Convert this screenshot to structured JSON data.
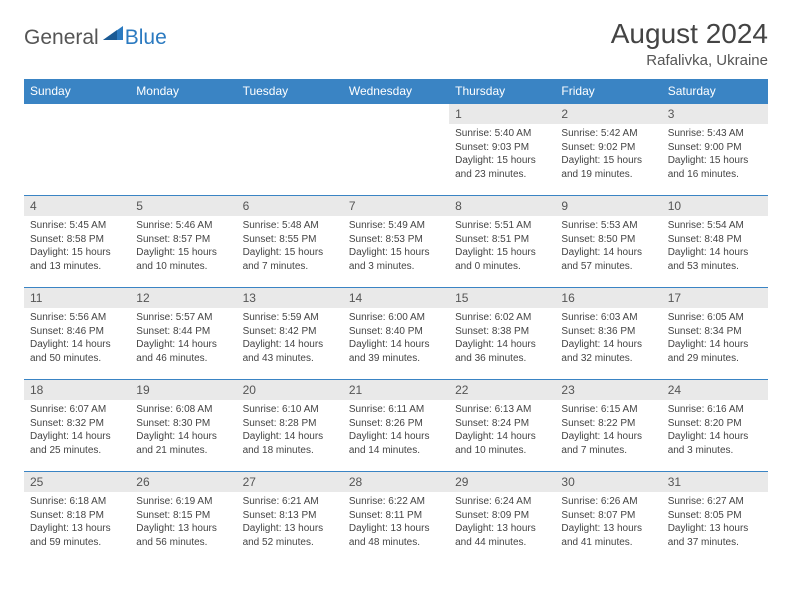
{
  "logo": {
    "part1": "General",
    "part2": "Blue"
  },
  "title": "August 2024",
  "location": "Rafalivka, Ukraine",
  "colors": {
    "header_bg": "#3a84c4",
    "header_text": "#ffffff",
    "daynum_bg": "#e9e9e9",
    "border": "#3a84c4",
    "body_text": "#444444",
    "logo_gray": "#555555",
    "logo_blue": "#2b7ac0"
  },
  "weekdays": [
    "Sunday",
    "Monday",
    "Tuesday",
    "Wednesday",
    "Thursday",
    "Friday",
    "Saturday"
  ],
  "weeks": [
    [
      {
        "n": "",
        "l1": "",
        "l2": "",
        "l3": "",
        "l4": ""
      },
      {
        "n": "",
        "l1": "",
        "l2": "",
        "l3": "",
        "l4": ""
      },
      {
        "n": "",
        "l1": "",
        "l2": "",
        "l3": "",
        "l4": ""
      },
      {
        "n": "",
        "l1": "",
        "l2": "",
        "l3": "",
        "l4": ""
      },
      {
        "n": "1",
        "l1": "Sunrise: 5:40 AM",
        "l2": "Sunset: 9:03 PM",
        "l3": "Daylight: 15 hours",
        "l4": "and 23 minutes."
      },
      {
        "n": "2",
        "l1": "Sunrise: 5:42 AM",
        "l2": "Sunset: 9:02 PM",
        "l3": "Daylight: 15 hours",
        "l4": "and 19 minutes."
      },
      {
        "n": "3",
        "l1": "Sunrise: 5:43 AM",
        "l2": "Sunset: 9:00 PM",
        "l3": "Daylight: 15 hours",
        "l4": "and 16 minutes."
      }
    ],
    [
      {
        "n": "4",
        "l1": "Sunrise: 5:45 AM",
        "l2": "Sunset: 8:58 PM",
        "l3": "Daylight: 15 hours",
        "l4": "and 13 minutes."
      },
      {
        "n": "5",
        "l1": "Sunrise: 5:46 AM",
        "l2": "Sunset: 8:57 PM",
        "l3": "Daylight: 15 hours",
        "l4": "and 10 minutes."
      },
      {
        "n": "6",
        "l1": "Sunrise: 5:48 AM",
        "l2": "Sunset: 8:55 PM",
        "l3": "Daylight: 15 hours",
        "l4": "and 7 minutes."
      },
      {
        "n": "7",
        "l1": "Sunrise: 5:49 AM",
        "l2": "Sunset: 8:53 PM",
        "l3": "Daylight: 15 hours",
        "l4": "and 3 minutes."
      },
      {
        "n": "8",
        "l1": "Sunrise: 5:51 AM",
        "l2": "Sunset: 8:51 PM",
        "l3": "Daylight: 15 hours",
        "l4": "and 0 minutes."
      },
      {
        "n": "9",
        "l1": "Sunrise: 5:53 AM",
        "l2": "Sunset: 8:50 PM",
        "l3": "Daylight: 14 hours",
        "l4": "and 57 minutes."
      },
      {
        "n": "10",
        "l1": "Sunrise: 5:54 AM",
        "l2": "Sunset: 8:48 PM",
        "l3": "Daylight: 14 hours",
        "l4": "and 53 minutes."
      }
    ],
    [
      {
        "n": "11",
        "l1": "Sunrise: 5:56 AM",
        "l2": "Sunset: 8:46 PM",
        "l3": "Daylight: 14 hours",
        "l4": "and 50 minutes."
      },
      {
        "n": "12",
        "l1": "Sunrise: 5:57 AM",
        "l2": "Sunset: 8:44 PM",
        "l3": "Daylight: 14 hours",
        "l4": "and 46 minutes."
      },
      {
        "n": "13",
        "l1": "Sunrise: 5:59 AM",
        "l2": "Sunset: 8:42 PM",
        "l3": "Daylight: 14 hours",
        "l4": "and 43 minutes."
      },
      {
        "n": "14",
        "l1": "Sunrise: 6:00 AM",
        "l2": "Sunset: 8:40 PM",
        "l3": "Daylight: 14 hours",
        "l4": "and 39 minutes."
      },
      {
        "n": "15",
        "l1": "Sunrise: 6:02 AM",
        "l2": "Sunset: 8:38 PM",
        "l3": "Daylight: 14 hours",
        "l4": "and 36 minutes."
      },
      {
        "n": "16",
        "l1": "Sunrise: 6:03 AM",
        "l2": "Sunset: 8:36 PM",
        "l3": "Daylight: 14 hours",
        "l4": "and 32 minutes."
      },
      {
        "n": "17",
        "l1": "Sunrise: 6:05 AM",
        "l2": "Sunset: 8:34 PM",
        "l3": "Daylight: 14 hours",
        "l4": "and 29 minutes."
      }
    ],
    [
      {
        "n": "18",
        "l1": "Sunrise: 6:07 AM",
        "l2": "Sunset: 8:32 PM",
        "l3": "Daylight: 14 hours",
        "l4": "and 25 minutes."
      },
      {
        "n": "19",
        "l1": "Sunrise: 6:08 AM",
        "l2": "Sunset: 8:30 PM",
        "l3": "Daylight: 14 hours",
        "l4": "and 21 minutes."
      },
      {
        "n": "20",
        "l1": "Sunrise: 6:10 AM",
        "l2": "Sunset: 8:28 PM",
        "l3": "Daylight: 14 hours",
        "l4": "and 18 minutes."
      },
      {
        "n": "21",
        "l1": "Sunrise: 6:11 AM",
        "l2": "Sunset: 8:26 PM",
        "l3": "Daylight: 14 hours",
        "l4": "and 14 minutes."
      },
      {
        "n": "22",
        "l1": "Sunrise: 6:13 AM",
        "l2": "Sunset: 8:24 PM",
        "l3": "Daylight: 14 hours",
        "l4": "and 10 minutes."
      },
      {
        "n": "23",
        "l1": "Sunrise: 6:15 AM",
        "l2": "Sunset: 8:22 PM",
        "l3": "Daylight: 14 hours",
        "l4": "and 7 minutes."
      },
      {
        "n": "24",
        "l1": "Sunrise: 6:16 AM",
        "l2": "Sunset: 8:20 PM",
        "l3": "Daylight: 14 hours",
        "l4": "and 3 minutes."
      }
    ],
    [
      {
        "n": "25",
        "l1": "Sunrise: 6:18 AM",
        "l2": "Sunset: 8:18 PM",
        "l3": "Daylight: 13 hours",
        "l4": "and 59 minutes."
      },
      {
        "n": "26",
        "l1": "Sunrise: 6:19 AM",
        "l2": "Sunset: 8:15 PM",
        "l3": "Daylight: 13 hours",
        "l4": "and 56 minutes."
      },
      {
        "n": "27",
        "l1": "Sunrise: 6:21 AM",
        "l2": "Sunset: 8:13 PM",
        "l3": "Daylight: 13 hours",
        "l4": "and 52 minutes."
      },
      {
        "n": "28",
        "l1": "Sunrise: 6:22 AM",
        "l2": "Sunset: 8:11 PM",
        "l3": "Daylight: 13 hours",
        "l4": "and 48 minutes."
      },
      {
        "n": "29",
        "l1": "Sunrise: 6:24 AM",
        "l2": "Sunset: 8:09 PM",
        "l3": "Daylight: 13 hours",
        "l4": "and 44 minutes."
      },
      {
        "n": "30",
        "l1": "Sunrise: 6:26 AM",
        "l2": "Sunset: 8:07 PM",
        "l3": "Daylight: 13 hours",
        "l4": "and 41 minutes."
      },
      {
        "n": "31",
        "l1": "Sunrise: 6:27 AM",
        "l2": "Sunset: 8:05 PM",
        "l3": "Daylight: 13 hours",
        "l4": "and 37 minutes."
      }
    ]
  ]
}
